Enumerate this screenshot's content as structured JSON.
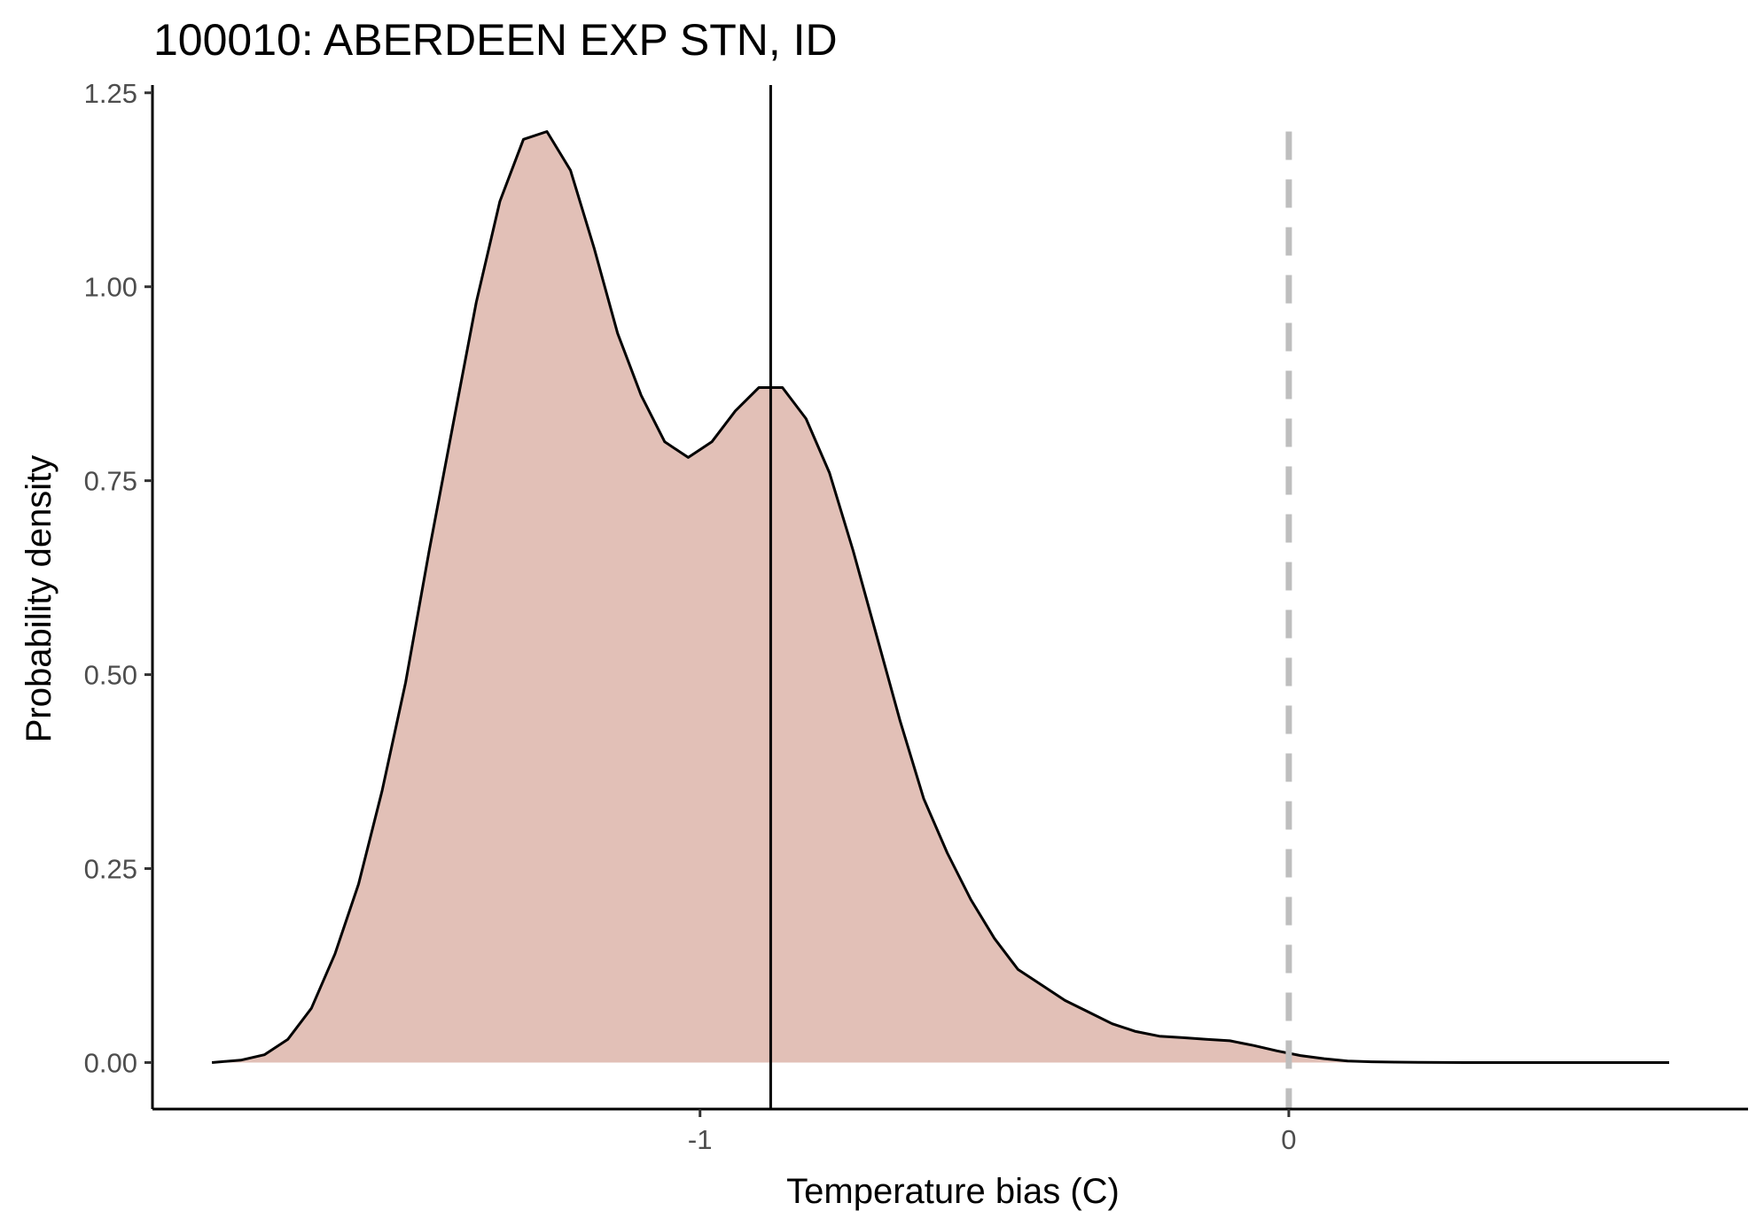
{
  "chart_data": {
    "type": "area",
    "title": "100010: ABERDEEN EXP STN, ID",
    "xlabel": "Temperature bias (C)",
    "ylabel": "Probability density",
    "xlim": [
      -1.93,
      0.78
    ],
    "ylim": [
      -0.06,
      1.26
    ],
    "x_ticks": [
      -1,
      0
    ],
    "x_tick_labels": [
      "-1",
      "0"
    ],
    "y_ticks": [
      0,
      0.25,
      0.5,
      0.75,
      1.0,
      1.25
    ],
    "y_tick_labels": [
      "0.00",
      "0.25",
      "0.50",
      "0.75",
      "1.00",
      "1.25"
    ],
    "grid": false,
    "fill_color": "#e2c0b7",
    "line_color": "#000000",
    "series": [
      {
        "x": [
          -1.829,
          -1.78,
          -1.74,
          -1.7,
          -1.66,
          -1.62,
          -1.58,
          -1.54,
          -1.5,
          -1.46,
          -1.42,
          -1.38,
          -1.34,
          -1.3,
          -1.26,
          -1.22,
          -1.18,
          -1.14,
          -1.1,
          -1.06,
          -1.02,
          -0.98,
          -0.94,
          -0.9,
          -0.86,
          -0.82,
          -0.78,
          -0.74,
          -0.7,
          -0.66,
          -0.62,
          -0.58,
          -0.54,
          -0.5,
          -0.46,
          -0.42,
          -0.38,
          -0.34,
          -0.3,
          -0.26,
          -0.22,
          -0.18,
          -0.14,
          -0.1,
          -0.06,
          -0.02,
          0.02,
          0.06,
          0.1,
          0.14,
          0.18,
          0.22,
          0.26,
          0.3,
          0.34,
          0.38,
          0.42,
          0.46,
          0.5,
          0.54,
          0.58,
          0.62,
          0.646
        ],
        "y": [
          0.0,
          0.003,
          0.01,
          0.03,
          0.07,
          0.14,
          0.23,
          0.35,
          0.49,
          0.66,
          0.82,
          0.98,
          1.11,
          1.19,
          1.2,
          1.15,
          1.05,
          0.94,
          0.86,
          0.8,
          0.78,
          0.8,
          0.84,
          0.87,
          0.87,
          0.83,
          0.76,
          0.66,
          0.55,
          0.44,
          0.34,
          0.27,
          0.21,
          0.16,
          0.12,
          0.1,
          0.08,
          0.065,
          0.05,
          0.04,
          0.034,
          0.032,
          0.03,
          0.028,
          0.022,
          0.015,
          0.009,
          0.005,
          0.002,
          0.001,
          0.0005,
          0.0002,
          0.0001,
          0.0,
          0.0,
          0.0,
          0.0,
          0.0,
          0.0,
          0.0,
          0.0,
          0.0,
          0.0
        ]
      }
    ],
    "reference_lines": [
      {
        "orientation": "vertical",
        "x": -0.88,
        "style": "solid",
        "color": "#000000"
      },
      {
        "orientation": "vertical",
        "x": 0,
        "style": "dashed",
        "color": "#bebebe"
      }
    ]
  }
}
